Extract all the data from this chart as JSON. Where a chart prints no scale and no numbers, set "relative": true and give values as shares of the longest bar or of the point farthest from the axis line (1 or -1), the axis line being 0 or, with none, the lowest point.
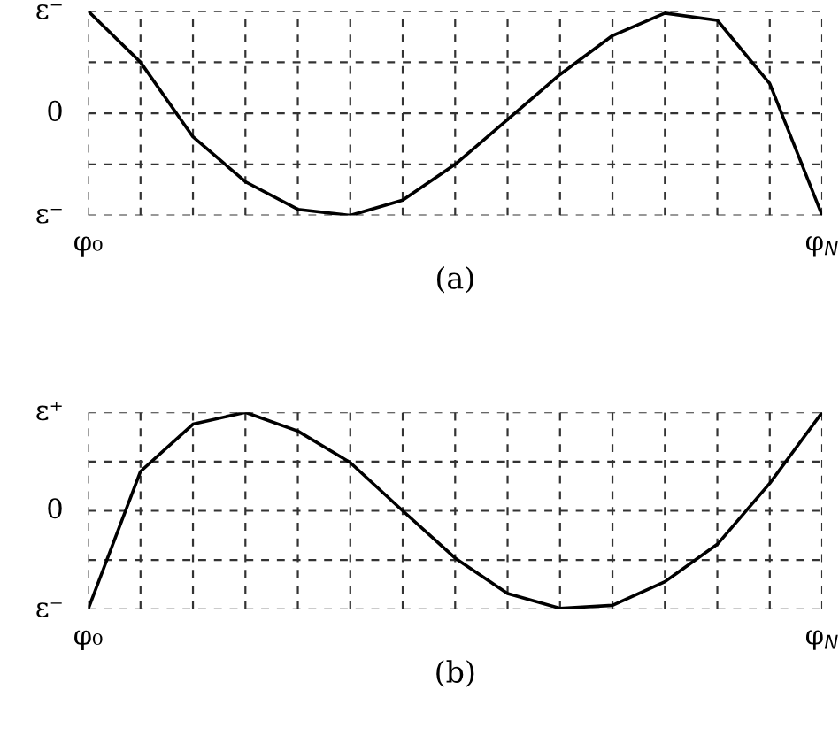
{
  "chart_data": [
    {
      "type": "line",
      "xlabel": "(a)",
      "relative": true,
      "categories": [
        "φ₀",
        null,
        null,
        null,
        null,
        null,
        null,
        null,
        null,
        null,
        null,
        null,
        null,
        null,
        "φ$_{N}$"
      ],
      "series": [
        {
          "color": "#000000",
          "values": [
            1,
            0.5,
            -0.23,
            -0.67,
            -0.94,
            -1,
            -0.85,
            -0.5,
            -0.06,
            0.38,
            0.76,
            0.98,
            0.91,
            0.29,
            -1
          ]
        }
      ],
      "annotations": [
        "ε⁻",
        "0",
        "ε⁻"
      ],
      "grid": true,
      "line_style": "solid",
      "marker": "none"
    },
    {
      "type": "line",
      "xlabel": "(b)",
      "relative": true,
      "categories": [
        "φ₀",
        null,
        null,
        null,
        null,
        null,
        null,
        null,
        null,
        null,
        null,
        null,
        null,
        null,
        "φ$_{N}$"
      ],
      "series": [
        {
          "color": "#000000",
          "values": [
            -1,
            0.4,
            0.88,
            1,
            0.81,
            0.49,
            0,
            -0.48,
            -0.84,
            -0.99,
            -0.96,
            -0.72,
            -0.34,
            0.28,
            1
          ]
        }
      ],
      "annotations": [
        "ε⁻",
        "0",
        "ε⁺"
      ],
      "grid": true,
      "line_style": "solid",
      "marker": "none"
    }
  ]
}
